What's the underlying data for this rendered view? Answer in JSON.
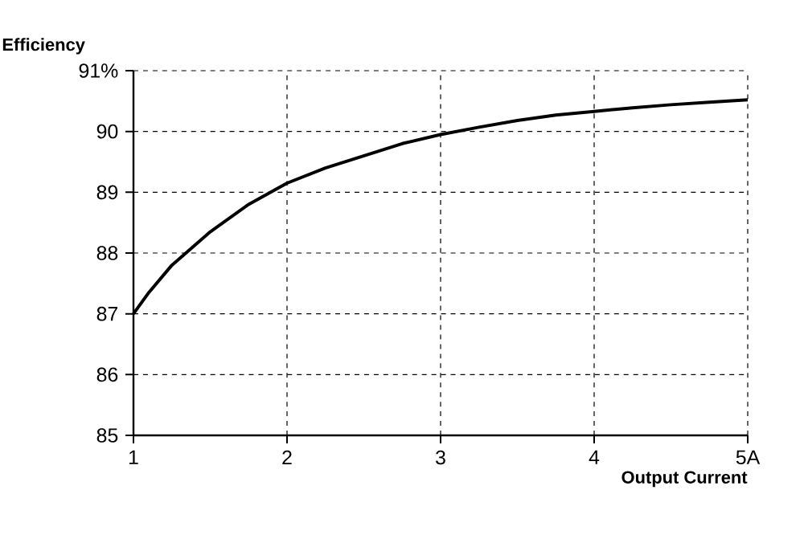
{
  "chart_data": {
    "type": "line",
    "ylabel": "Efficiency",
    "xlabel": "Output Current",
    "x": [
      1,
      1.1,
      1.25,
      1.5,
      1.75,
      2,
      2.25,
      2.5,
      2.75,
      3,
      3.25,
      3.5,
      3.75,
      4,
      4.25,
      4.5,
      4.75,
      5
    ],
    "series": [
      {
        "color": "#000000",
        "values": [
          87,
          87.35,
          87.8,
          88.35,
          88.8,
          89.15,
          89.4,
          89.6,
          89.8,
          89.95,
          90.07,
          90.18,
          90.27,
          90.33,
          90.39,
          90.44,
          90.48,
          90.52
        ]
      }
    ],
    "xlim": [
      1,
      5
    ],
    "xticks": [
      1,
      2,
      3,
      4,
      {
        "value": 5,
        "label": "5A"
      }
    ],
    "ylim": [
      85,
      91
    ],
    "yticks": [
      85,
      86,
      87,
      88,
      89,
      90,
      {
        "value": 91,
        "label": "91%"
      }
    ],
    "grid": true,
    "marker": "none",
    "line_style": "solid"
  }
}
